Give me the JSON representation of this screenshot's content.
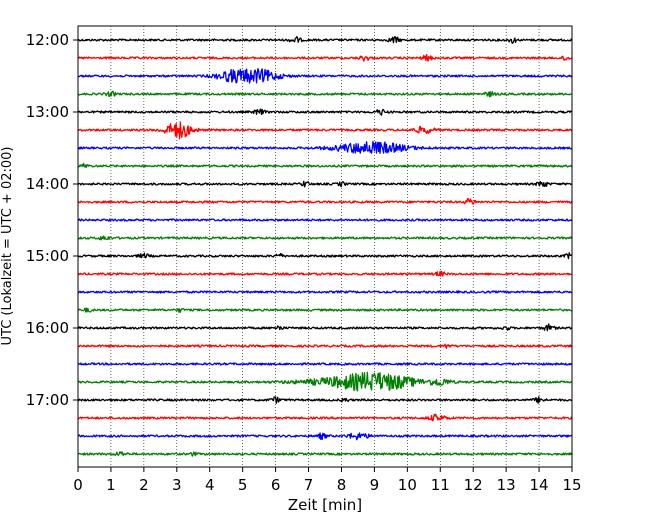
{
  "chart_data": {
    "type": "line",
    "title": "",
    "xlabel": "Zeit  [min]",
    "ylabel": "UTC (Lokalzeit = UTC + 02:00)",
    "xlim": [
      0,
      15
    ],
    "x_ticks": [
      "0",
      "1",
      "2",
      "3",
      "4",
      "5",
      "6",
      "7",
      "8",
      "9",
      "10",
      "11",
      "12",
      "13",
      "14",
      "15"
    ],
    "y_ticks": [
      "12:00",
      "13:00",
      "14:00",
      "15:00",
      "16:00",
      "17:00"
    ],
    "grid": "vertical-dotted",
    "trace_interval_min": 15,
    "trace_colors": [
      "#000000",
      "#ff0000",
      "#0000ff",
      "#008000"
    ],
    "traces": [
      {
        "start": "12:00",
        "color": "#000000",
        "events": [
          {
            "t": 6.6,
            "amp": 3,
            "dur": 0.3
          },
          {
            "t": 9.6,
            "amp": 3,
            "dur": 0.3
          },
          {
            "t": 13.2,
            "amp": 3,
            "dur": 0.2
          }
        ]
      },
      {
        "start": "12:15",
        "color": "#ff0000",
        "events": [
          {
            "t": 8.7,
            "amp": 2.5,
            "dur": 0.3
          },
          {
            "t": 10.6,
            "amp": 2.5,
            "dur": 0.3
          },
          {
            "t": 14.8,
            "amp": 4,
            "dur": 0.15
          }
        ]
      },
      {
        "start": "12:30",
        "color": "#0000ff",
        "events": [
          {
            "t": 4.7,
            "amp": 5,
            "dur": 1.0
          },
          {
            "t": 5.5,
            "amp": 6,
            "dur": 1.2
          }
        ]
      },
      {
        "start": "12:45",
        "color": "#008000",
        "events": [
          {
            "t": 1.0,
            "amp": 2,
            "dur": 0.3
          },
          {
            "t": 12.5,
            "amp": 2,
            "dur": 0.3
          }
        ]
      },
      {
        "start": "13:00",
        "color": "#000000",
        "events": [
          {
            "t": 5.5,
            "amp": 2.5,
            "dur": 0.3
          },
          {
            "t": 9.2,
            "amp": 2.5,
            "dur": 0.3
          }
        ]
      },
      {
        "start": "13:15",
        "color": "#ff0000",
        "events": [
          {
            "t": 3.05,
            "amp": 8,
            "dur": 0.8
          },
          {
            "t": 10.5,
            "amp": 3,
            "dur": 0.6
          }
        ]
      },
      {
        "start": "13:30",
        "color": "#0000ff",
        "events": [
          {
            "t": 8.9,
            "amp": 6,
            "dur": 2.0
          }
        ]
      },
      {
        "start": "13:45",
        "color": "#008000",
        "events": [
          {
            "t": 0.2,
            "amp": 2,
            "dur": 0.2
          }
        ]
      },
      {
        "start": "14:00",
        "color": "#000000",
        "events": [
          {
            "t": 6.9,
            "amp": 3,
            "dur": 0.2
          },
          {
            "t": 8.0,
            "amp": 2,
            "dur": 0.2
          },
          {
            "t": 14.1,
            "amp": 3,
            "dur": 0.3
          }
        ]
      },
      {
        "start": "14:15",
        "color": "#ff0000",
        "events": [
          {
            "t": 11.9,
            "amp": 3,
            "dur": 0.3
          }
        ]
      },
      {
        "start": "14:30",
        "color": "#0000ff",
        "events": []
      },
      {
        "start": "14:45",
        "color": "#008000",
        "events": [
          {
            "t": 0.8,
            "amp": 2,
            "dur": 0.3
          }
        ]
      },
      {
        "start": "15:00",
        "color": "#000000",
        "events": [
          {
            "t": 2.0,
            "amp": 2,
            "dur": 0.3
          },
          {
            "t": 6.1,
            "amp": 2.5,
            "dur": 0.2
          },
          {
            "t": 14.9,
            "amp": 2.5,
            "dur": 0.2
          }
        ]
      },
      {
        "start": "15:15",
        "color": "#ff0000",
        "events": [
          {
            "t": 11.0,
            "amp": 2,
            "dur": 0.3
          }
        ]
      },
      {
        "start": "15:30",
        "color": "#0000ff",
        "events": []
      },
      {
        "start": "15:45",
        "color": "#008000",
        "events": [
          {
            "t": 0.3,
            "amp": 2,
            "dur": 0.2
          },
          {
            "t": 3.1,
            "amp": 1.5,
            "dur": 0.2
          }
        ]
      },
      {
        "start": "16:00",
        "color": "#000000",
        "events": [
          {
            "t": 6.1,
            "amp": 2.5,
            "dur": 0.2
          },
          {
            "t": 13.0,
            "amp": 2,
            "dur": 0.2
          },
          {
            "t": 14.3,
            "amp": 3,
            "dur": 0.3
          }
        ]
      },
      {
        "start": "16:15",
        "color": "#ff0000",
        "events": [
          {
            "t": 11.2,
            "amp": 2,
            "dur": 0.2
          }
        ]
      },
      {
        "start": "16:30",
        "color": "#0000ff",
        "events": []
      },
      {
        "start": "16:45",
        "color": "#008000",
        "events": [
          {
            "t": 8.5,
            "amp": 5,
            "dur": 3.0
          },
          {
            "t": 9.2,
            "amp": 5,
            "dur": 2.0
          },
          {
            "t": 11.0,
            "amp": 3,
            "dur": 0.6
          }
        ]
      },
      {
        "start": "17:00",
        "color": "#000000",
        "events": [
          {
            "t": 6.0,
            "amp": 2.5,
            "dur": 0.3
          },
          {
            "t": 8.1,
            "amp": 2,
            "dur": 0.2
          },
          {
            "t": 14.0,
            "amp": 2.5,
            "dur": 0.3
          }
        ]
      },
      {
        "start": "17:15",
        "color": "#ff0000",
        "events": [
          {
            "t": 10.9,
            "amp": 3,
            "dur": 0.5
          }
        ]
      },
      {
        "start": "17:30",
        "color": "#0000ff",
        "events": [
          {
            "t": 7.4,
            "amp": 2.5,
            "dur": 0.3
          },
          {
            "t": 8.5,
            "amp": 3,
            "dur": 0.6
          }
        ]
      },
      {
        "start": "17:45",
        "color": "#008000",
        "events": [
          {
            "t": 1.3,
            "amp": 2,
            "dur": 0.3
          },
          {
            "t": 3.5,
            "amp": 1.5,
            "dur": 0.2
          }
        ]
      }
    ]
  }
}
